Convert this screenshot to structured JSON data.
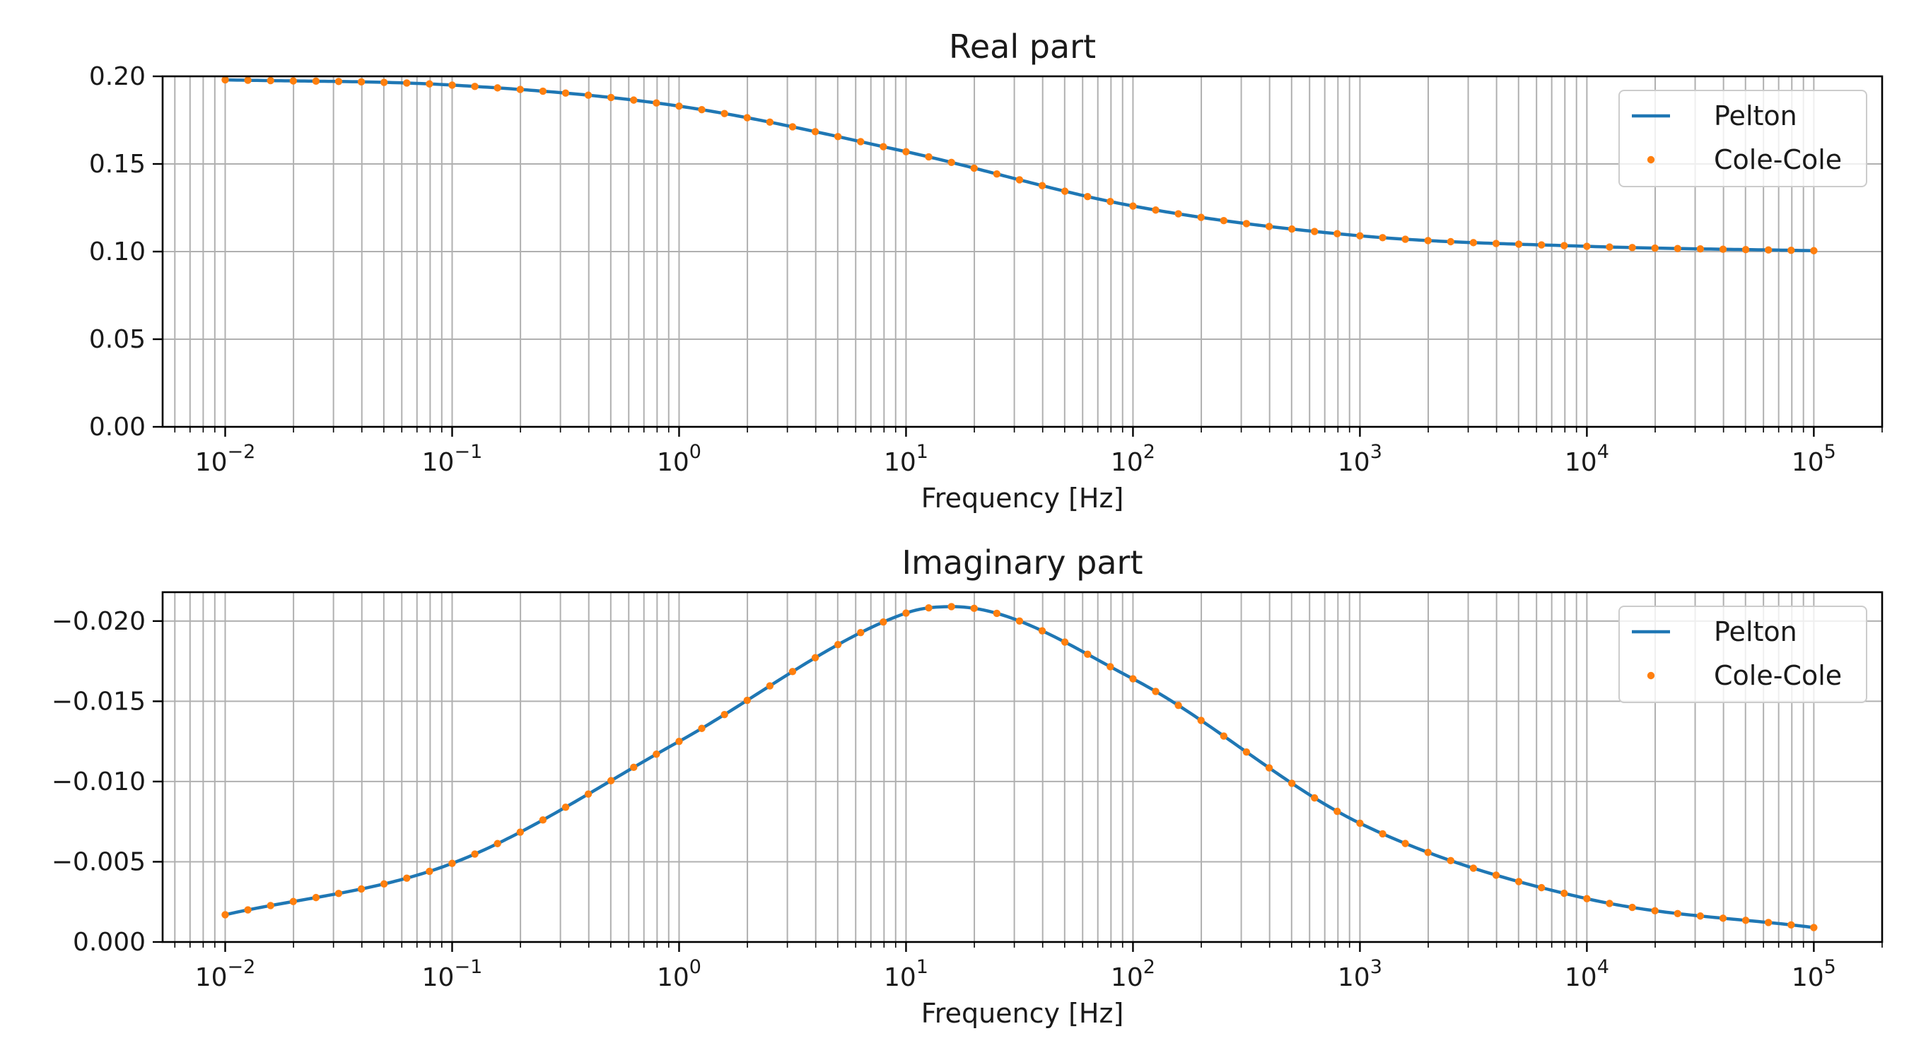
{
  "chart_data": [
    {
      "type": "line",
      "title": "Real part",
      "xlabel": "Frequency [Hz]",
      "ylabel": "",
      "xscale": "log",
      "xlim": [
        0.0053,
        200000
      ],
      "ylim": [
        0.0,
        0.2
      ],
      "y_inverted": false,
      "grid": "major and minor",
      "legend_position": "top-right",
      "x_ticks": [
        0.01,
        0.1,
        1,
        10,
        100,
        1000,
        10000,
        100000
      ],
      "x_tick_labels": [
        {
          "base": "10",
          "exp": "−2"
        },
        {
          "base": "10",
          "exp": "−1"
        },
        {
          "base": "10",
          "exp": "0"
        },
        {
          "base": "10",
          "exp": "1"
        },
        {
          "base": "10",
          "exp": "2"
        },
        {
          "base": "10",
          "exp": "3"
        },
        {
          "base": "10",
          "exp": "4"
        },
        {
          "base": "10",
          "exp": "5"
        }
      ],
      "y_ticks": [
        0.0,
        0.05,
        0.1,
        0.15,
        0.2
      ],
      "y_tick_labels": [
        "0.00",
        "0.05",
        "0.10",
        "0.15",
        "0.20"
      ],
      "x": [
        0.01,
        0.1,
        1,
        10,
        100,
        1000,
        10000,
        100000
      ],
      "series": [
        {
          "name": "Pelton",
          "style": "line",
          "color": "#1f77b4",
          "values": [
            0.198,
            0.195,
            0.183,
            0.157,
            0.126,
            0.109,
            0.103,
            0.1005
          ]
        },
        {
          "name": "Cole-Cole",
          "style": "dots",
          "color": "#ff7f0e",
          "values": [
            0.198,
            0.195,
            0.183,
            0.157,
            0.126,
            0.109,
            0.103,
            0.1005
          ]
        }
      ]
    },
    {
      "type": "line",
      "title": "Imaginary part",
      "xlabel": "Frequency [Hz]",
      "ylabel": "",
      "xscale": "log",
      "xlim": [
        0.0053,
        200000
      ],
      "ylim": [
        0.0,
        -0.0218
      ],
      "y_inverted": true,
      "grid": "major and minor",
      "legend_position": "top-right",
      "x_ticks": [
        0.01,
        0.1,
        1,
        10,
        100,
        1000,
        10000,
        100000
      ],
      "x_tick_labels": [
        {
          "base": "10",
          "exp": "−2"
        },
        {
          "base": "10",
          "exp": "−1"
        },
        {
          "base": "10",
          "exp": "0"
        },
        {
          "base": "10",
          "exp": "1"
        },
        {
          "base": "10",
          "exp": "2"
        },
        {
          "base": "10",
          "exp": "3"
        },
        {
          "base": "10",
          "exp": "4"
        },
        {
          "base": "10",
          "exp": "5"
        }
      ],
      "y_ticks": [
        0.0,
        -0.005,
        -0.01,
        -0.015,
        -0.02
      ],
      "y_tick_labels": [
        "0.000",
        "−0.005",
        "−0.010",
        "−0.015",
        "−0.020"
      ],
      "x": [
        0.01,
        0.1,
        1,
        10,
        16,
        100,
        1000,
        10000,
        100000
      ],
      "series": [
        {
          "name": "Pelton",
          "style": "line",
          "color": "#1f77b4",
          "values": [
            -0.0017,
            -0.0049,
            -0.0125,
            -0.0205,
            -0.0209,
            -0.0164,
            -0.0074,
            -0.0027,
            -0.0009
          ]
        },
        {
          "name": "Cole-Cole",
          "style": "dots",
          "color": "#ff7f0e",
          "values": [
            -0.0017,
            -0.0049,
            -0.0125,
            -0.0205,
            -0.0209,
            -0.0164,
            -0.0074,
            -0.0027,
            -0.0009
          ]
        }
      ]
    }
  ]
}
